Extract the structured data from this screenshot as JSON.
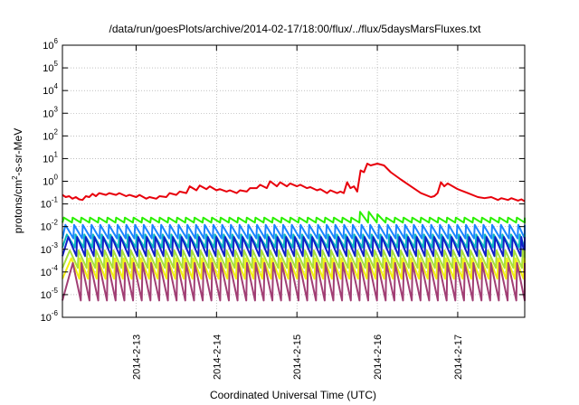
{
  "chart_data": {
    "type": "line",
    "title": "/data/run/goesPlots/archive/2014-02-17/18:00/flux/../flux/5daysMarsFluxes.txt",
    "xlabel": "Coordinated Universal Time (UTC)",
    "ylabel_parts": [
      "protons/cm",
      "2",
      "-s-sr-MeV"
    ],
    "yscale": "log",
    "ylim": [
      1e-06,
      1000000.0
    ],
    "xlim": [
      "2014-02-12T02:00",
      "2014-02-17T20:00"
    ],
    "grid": true,
    "y_ticks": [
      {
        "base": "10",
        "exp": "-6",
        "value": 1e-06
      },
      {
        "base": "10",
        "exp": "-5",
        "value": 1e-05
      },
      {
        "base": "10",
        "exp": "-4",
        "value": 0.0001
      },
      {
        "base": "10",
        "exp": "-3",
        "value": 0.001
      },
      {
        "base": "10",
        "exp": "-2",
        "value": 0.01
      },
      {
        "base": "10",
        "exp": "-1",
        "value": 0.1
      },
      {
        "base": "10",
        "exp": "0",
        "value": 1
      },
      {
        "base": "10",
        "exp": "1",
        "value": 10
      },
      {
        "base": "10",
        "exp": "2",
        "value": 100
      },
      {
        "base": "10",
        "exp": "3",
        "value": 1000
      },
      {
        "base": "10",
        "exp": "4",
        "value": 10000
      },
      {
        "base": "10",
        "exp": "5",
        "value": 100000
      },
      {
        "base": "10",
        "exp": "6",
        "value": 1000000
      }
    ],
    "x_ticks": [
      {
        "label": "2014-2-13",
        "date": "2014-02-13T00:00"
      },
      {
        "label": "2014-2-14",
        "date": "2014-02-14T00:00"
      },
      {
        "label": "2014-2-15",
        "date": "2014-02-15T00:00"
      },
      {
        "label": "2014-2-16",
        "date": "2014-02-16T00:00"
      },
      {
        "label": "2014-2-17",
        "date": "2014-02-17T00:00"
      }
    ],
    "series": [
      {
        "color": "#e8000b",
        "style": "smooth",
        "points": [
          [
            "2014-02-12T02:00",
            0.25
          ],
          [
            "2014-02-12T03:00",
            0.2
          ],
          [
            "2014-02-12T04:00",
            0.22
          ],
          [
            "2014-02-12T05:00",
            0.17
          ],
          [
            "2014-02-12T06:00",
            0.2
          ],
          [
            "2014-02-12T07:00",
            0.16
          ],
          [
            "2014-02-12T08:00",
            0.15
          ],
          [
            "2014-02-12T09:00",
            0.22
          ],
          [
            "2014-02-12T10:00",
            0.2
          ],
          [
            "2014-02-12T11:00",
            0.28
          ],
          [
            "2014-02-12T12:00",
            0.22
          ],
          [
            "2014-02-12T13:00",
            0.3
          ],
          [
            "2014-02-12T15:00",
            0.25
          ],
          [
            "2014-02-12T16:00",
            0.3
          ],
          [
            "2014-02-12T18:00",
            0.25
          ],
          [
            "2014-02-12T19:00",
            0.3
          ],
          [
            "2014-02-12T21:00",
            0.22
          ],
          [
            "2014-02-12T22:00",
            0.25
          ],
          [
            "2014-02-13T00:00",
            0.2
          ],
          [
            "2014-02-13T01:00",
            0.25
          ],
          [
            "2014-02-13T03:00",
            0.17
          ],
          [
            "2014-02-13T04:00",
            0.2
          ],
          [
            "2014-02-13T06:00",
            0.17
          ],
          [
            "2014-02-13T07:00",
            0.22
          ],
          [
            "2014-02-13T09:00",
            0.2
          ],
          [
            "2014-02-13T10:00",
            0.3
          ],
          [
            "2014-02-13T12:00",
            0.25
          ],
          [
            "2014-02-13T13:00",
            0.35
          ],
          [
            "2014-02-13T15:00",
            0.3
          ],
          [
            "2014-02-13T16:00",
            0.6
          ],
          [
            "2014-02-13T18:00",
            0.4
          ],
          [
            "2014-02-13T19:00",
            0.65
          ],
          [
            "2014-02-13T21:00",
            0.45
          ],
          [
            "2014-02-13T22:00",
            0.6
          ],
          [
            "2014-02-14T00:00",
            0.4
          ],
          [
            "2014-02-14T01:00",
            0.45
          ],
          [
            "2014-02-14T03:00",
            0.35
          ],
          [
            "2014-02-14T04:00",
            0.4
          ],
          [
            "2014-02-14T06:00",
            0.3
          ],
          [
            "2014-02-14T07:00",
            0.4
          ],
          [
            "2014-02-14T09:00",
            0.35
          ],
          [
            "2014-02-14T10:00",
            0.5
          ],
          [
            "2014-02-14T12:00",
            0.5
          ],
          [
            "2014-02-14T13:00",
            0.7
          ],
          [
            "2014-02-14T15:00",
            0.5
          ],
          [
            "2014-02-14T16:00",
            1.0
          ],
          [
            "2014-02-14T18:00",
            0.6
          ],
          [
            "2014-02-14T19:00",
            0.9
          ],
          [
            "2014-02-14T21:00",
            0.6
          ],
          [
            "2014-02-14T22:00",
            0.8
          ],
          [
            "2014-02-15T00:00",
            0.6
          ],
          [
            "2014-02-15T01:00",
            0.7
          ],
          [
            "2014-02-15T03:00",
            0.5
          ],
          [
            "2014-02-15T04:00",
            0.55
          ],
          [
            "2014-02-15T06:00",
            0.4
          ],
          [
            "2014-02-15T07:00",
            0.45
          ],
          [
            "2014-02-15T09:00",
            0.3
          ],
          [
            "2014-02-15T10:00",
            0.4
          ],
          [
            "2014-02-15T12:00",
            0.3
          ],
          [
            "2014-02-15T13:00",
            0.35
          ],
          [
            "2014-02-15T14:00",
            0.3
          ],
          [
            "2014-02-15T15:00",
            0.9
          ],
          [
            "2014-02-15T16:00",
            0.5
          ],
          [
            "2014-02-15T17:00",
            0.6
          ],
          [
            "2014-02-15T18:00",
            0.35
          ],
          [
            "2014-02-15T19:00",
            3
          ],
          [
            "2014-02-15T20:00",
            2.5
          ],
          [
            "2014-02-15T21:00",
            6
          ],
          [
            "2014-02-15T22:00",
            5
          ],
          [
            "2014-02-16T00:00",
            6
          ],
          [
            "2014-02-16T02:00",
            5
          ],
          [
            "2014-02-16T04:00",
            2.5
          ],
          [
            "2014-02-16T07:00",
            1.2
          ],
          [
            "2014-02-16T10:00",
            0.6
          ],
          [
            "2014-02-16T13:00",
            0.3
          ],
          [
            "2014-02-16T16:00",
            0.2
          ],
          [
            "2014-02-16T17:00",
            0.22
          ],
          [
            "2014-02-16T18:00",
            0.3
          ],
          [
            "2014-02-16T19:00",
            0.9
          ],
          [
            "2014-02-16T20:00",
            0.6
          ],
          [
            "2014-02-16T21:00",
            0.8
          ],
          [
            "2014-02-17T00:00",
            0.45
          ],
          [
            "2014-02-17T03:00",
            0.3
          ],
          [
            "2014-02-17T06:00",
            0.2
          ],
          [
            "2014-02-17T08:00",
            0.18
          ],
          [
            "2014-02-17T10:00",
            0.2
          ],
          [
            "2014-02-17T12:00",
            0.15
          ],
          [
            "2014-02-17T13:00",
            0.18
          ],
          [
            "2014-02-17T15:00",
            0.15
          ],
          [
            "2014-02-17T16:00",
            0.18
          ],
          [
            "2014-02-17T18:00",
            0.14
          ],
          [
            "2014-02-17T19:00",
            0.16
          ],
          [
            "2014-02-17T20:00",
            0.13
          ]
        ]
      },
      {
        "color": "#2af000",
        "style": "sawtooth",
        "peak": 0.025,
        "trough": 0.015,
        "period_hours": 2.6,
        "bumps": [
          [
            "2014-02-15T21:00",
            0.045
          ],
          [
            "2014-02-16T00:00",
            0.035
          ]
        ]
      },
      {
        "color": "#1a84ff",
        "style": "sawtooth",
        "peak": 0.012,
        "trough": 0.003,
        "period_hours": 2.6
      },
      {
        "color": "#0fb8c0",
        "style": "sawtooth",
        "peak": 0.0045,
        "trough": 0.0012,
        "period_hours": 2.6
      },
      {
        "color": "#1020c8",
        "style": "sawtooth",
        "peak": 0.0035,
        "trough": 0.0005,
        "period_hours": 2.6
      },
      {
        "color": "#a8e03c",
        "style": "sawtooth",
        "peak": 0.0009,
        "trough": 0.00015,
        "period_hours": 2.6
      },
      {
        "color": "#f2ef12",
        "style": "sawtooth",
        "peak": 0.0004,
        "trough": 5e-05,
        "period_hours": 2.6
      },
      {
        "color": "#a13e74",
        "style": "sawtooth",
        "peak": 0.00025,
        "trough": 5.5e-06,
        "period_hours": 2.6
      }
    ]
  }
}
